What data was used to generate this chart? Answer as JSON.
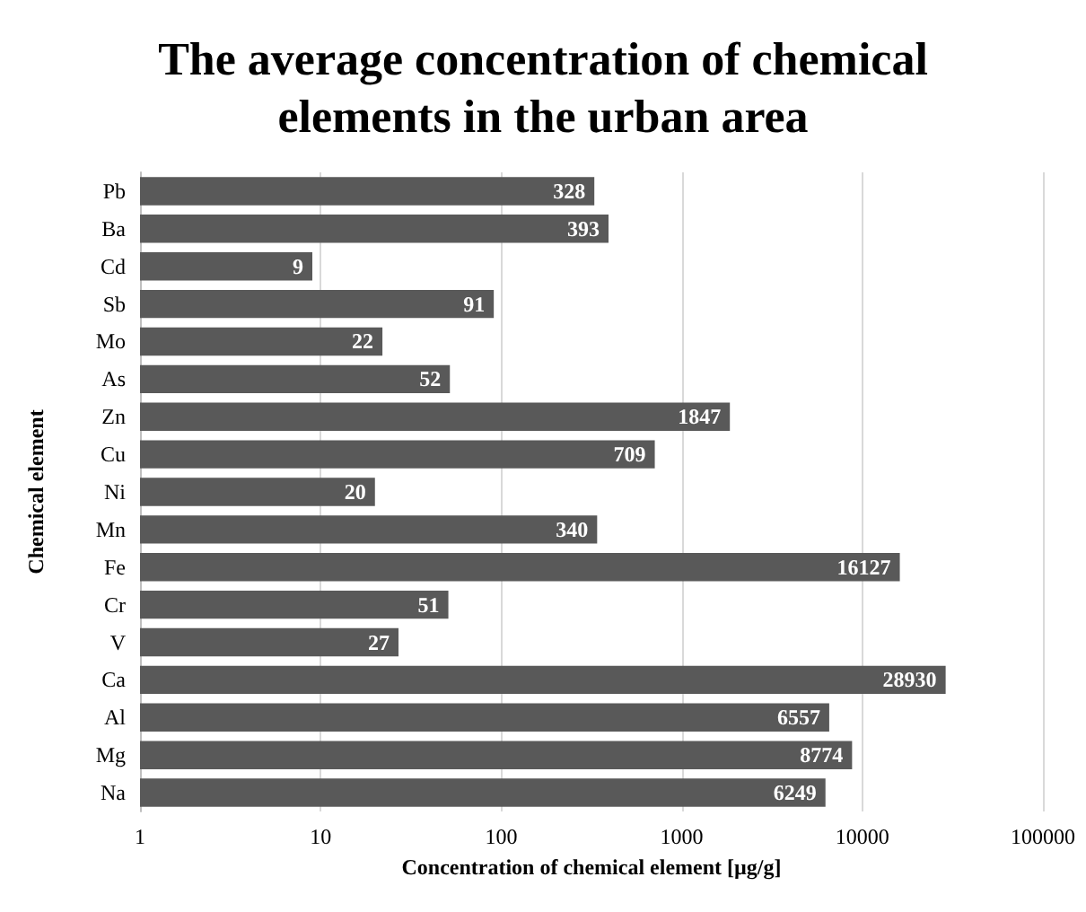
{
  "chart_data": {
    "type": "bar",
    "orientation": "horizontal",
    "title": "The average concentration of chemical\nelements in the urban area",
    "xlabel": "Concentration of chemical element [µg/g]",
    "ylabel": "Chemical element",
    "categories": [
      "Pb",
      "Ba",
      "Cd",
      "Sb",
      "Mo",
      "As",
      "Zn",
      "Cu",
      "Ni",
      "Mn",
      "Fe",
      "Cr",
      "V",
      "Ca",
      "Al",
      "Mg",
      "Na"
    ],
    "values": [
      328,
      393,
      9,
      91,
      22,
      52,
      1847,
      709,
      20,
      340,
      16127,
      51,
      27,
      28930,
      6557,
      8774,
      6249
    ],
    "color": "#595959",
    "log": "x",
    "xlim": [
      1,
      100000
    ],
    "xticks": [
      1,
      10,
      100,
      1000,
      10000,
      100000
    ],
    "grid": "x",
    "data_labels": true
  }
}
